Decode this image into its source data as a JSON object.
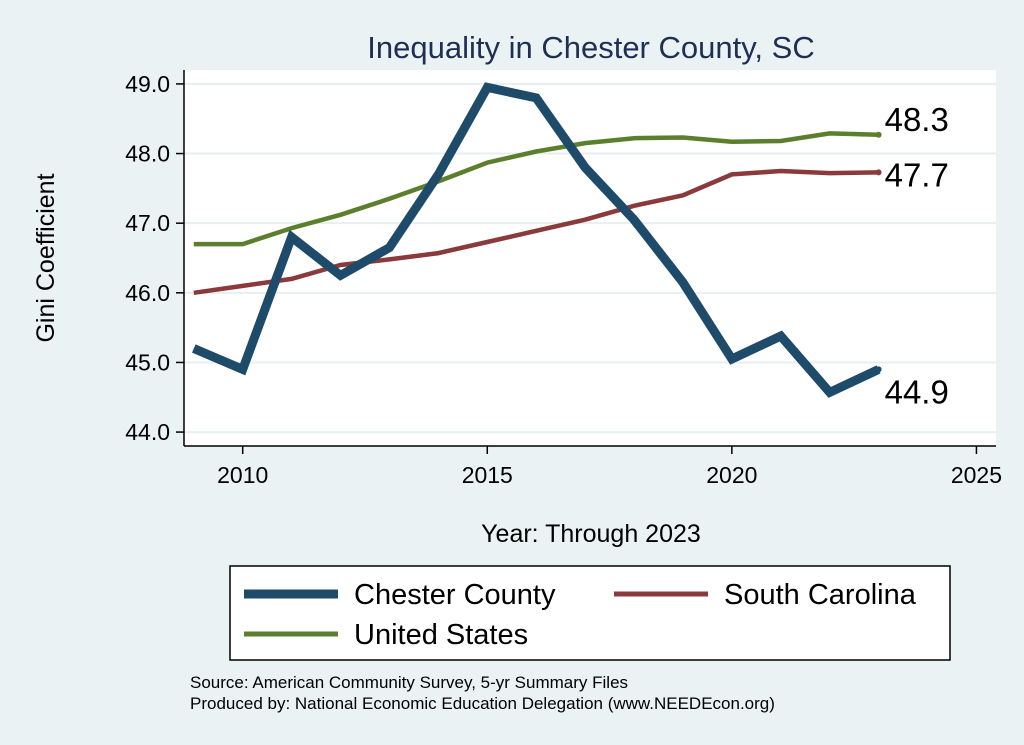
{
  "chart_data": {
    "type": "line",
    "title": "Inequality in Chester County, SC",
    "xlabel": "Year: Through 2023",
    "ylabel": "Gini Coefficient",
    "xlim": [
      2008.8,
      2025.4
    ],
    "ylim": [
      43.8,
      49.2
    ],
    "x_ticks": [
      2010,
      2015,
      2020,
      2025
    ],
    "y_ticks": [
      44.0,
      45.0,
      46.0,
      47.0,
      48.0,
      49.0
    ],
    "x_tick_labels": [
      "2010",
      "2015",
      "2020",
      "2025"
    ],
    "y_tick_labels": [
      "44.0",
      "45.0",
      "46.0",
      "47.0",
      "48.0",
      "49.0"
    ],
    "grid": true,
    "x": [
      2009,
      2010,
      2011,
      2012,
      2013,
      2014,
      2015,
      2016,
      2017,
      2018,
      2019,
      2020,
      2021,
      2022,
      2023
    ],
    "series": [
      {
        "name": "Chester County",
        "color": "#1f4b6b",
        "weight": "thick",
        "values": [
          45.2,
          44.9,
          46.8,
          46.25,
          46.65,
          47.7,
          48.95,
          48.8,
          47.8,
          47.05,
          46.15,
          45.05,
          45.38,
          44.57,
          44.9
        ],
        "end_label": "44.9"
      },
      {
        "name": "South Carolina",
        "color": "#8b3a3c",
        "weight": "medium",
        "values": [
          46.0,
          46.1,
          46.2,
          46.4,
          46.48,
          46.57,
          46.73,
          46.89,
          47.05,
          47.25,
          47.4,
          47.7,
          47.75,
          47.72,
          47.73
        ],
        "end_label": "47.7"
      },
      {
        "name": "United States",
        "color": "#5b7f2d",
        "weight": "medium",
        "values": [
          46.7,
          46.7,
          46.93,
          47.12,
          47.35,
          47.6,
          47.87,
          48.03,
          48.15,
          48.22,
          48.23,
          48.17,
          48.18,
          48.29,
          48.27
        ],
        "end_label": "48.3"
      }
    ],
    "legend": {
      "position": "bottom",
      "items": [
        "Chester County",
        "South Carolina",
        "United States"
      ]
    }
  },
  "notes": {
    "source": "Source: American Community Survey, 5-yr Summary Files",
    "producer": "Produced by: National Economic Education Delegation (www.NEEDEcon.org)"
  }
}
